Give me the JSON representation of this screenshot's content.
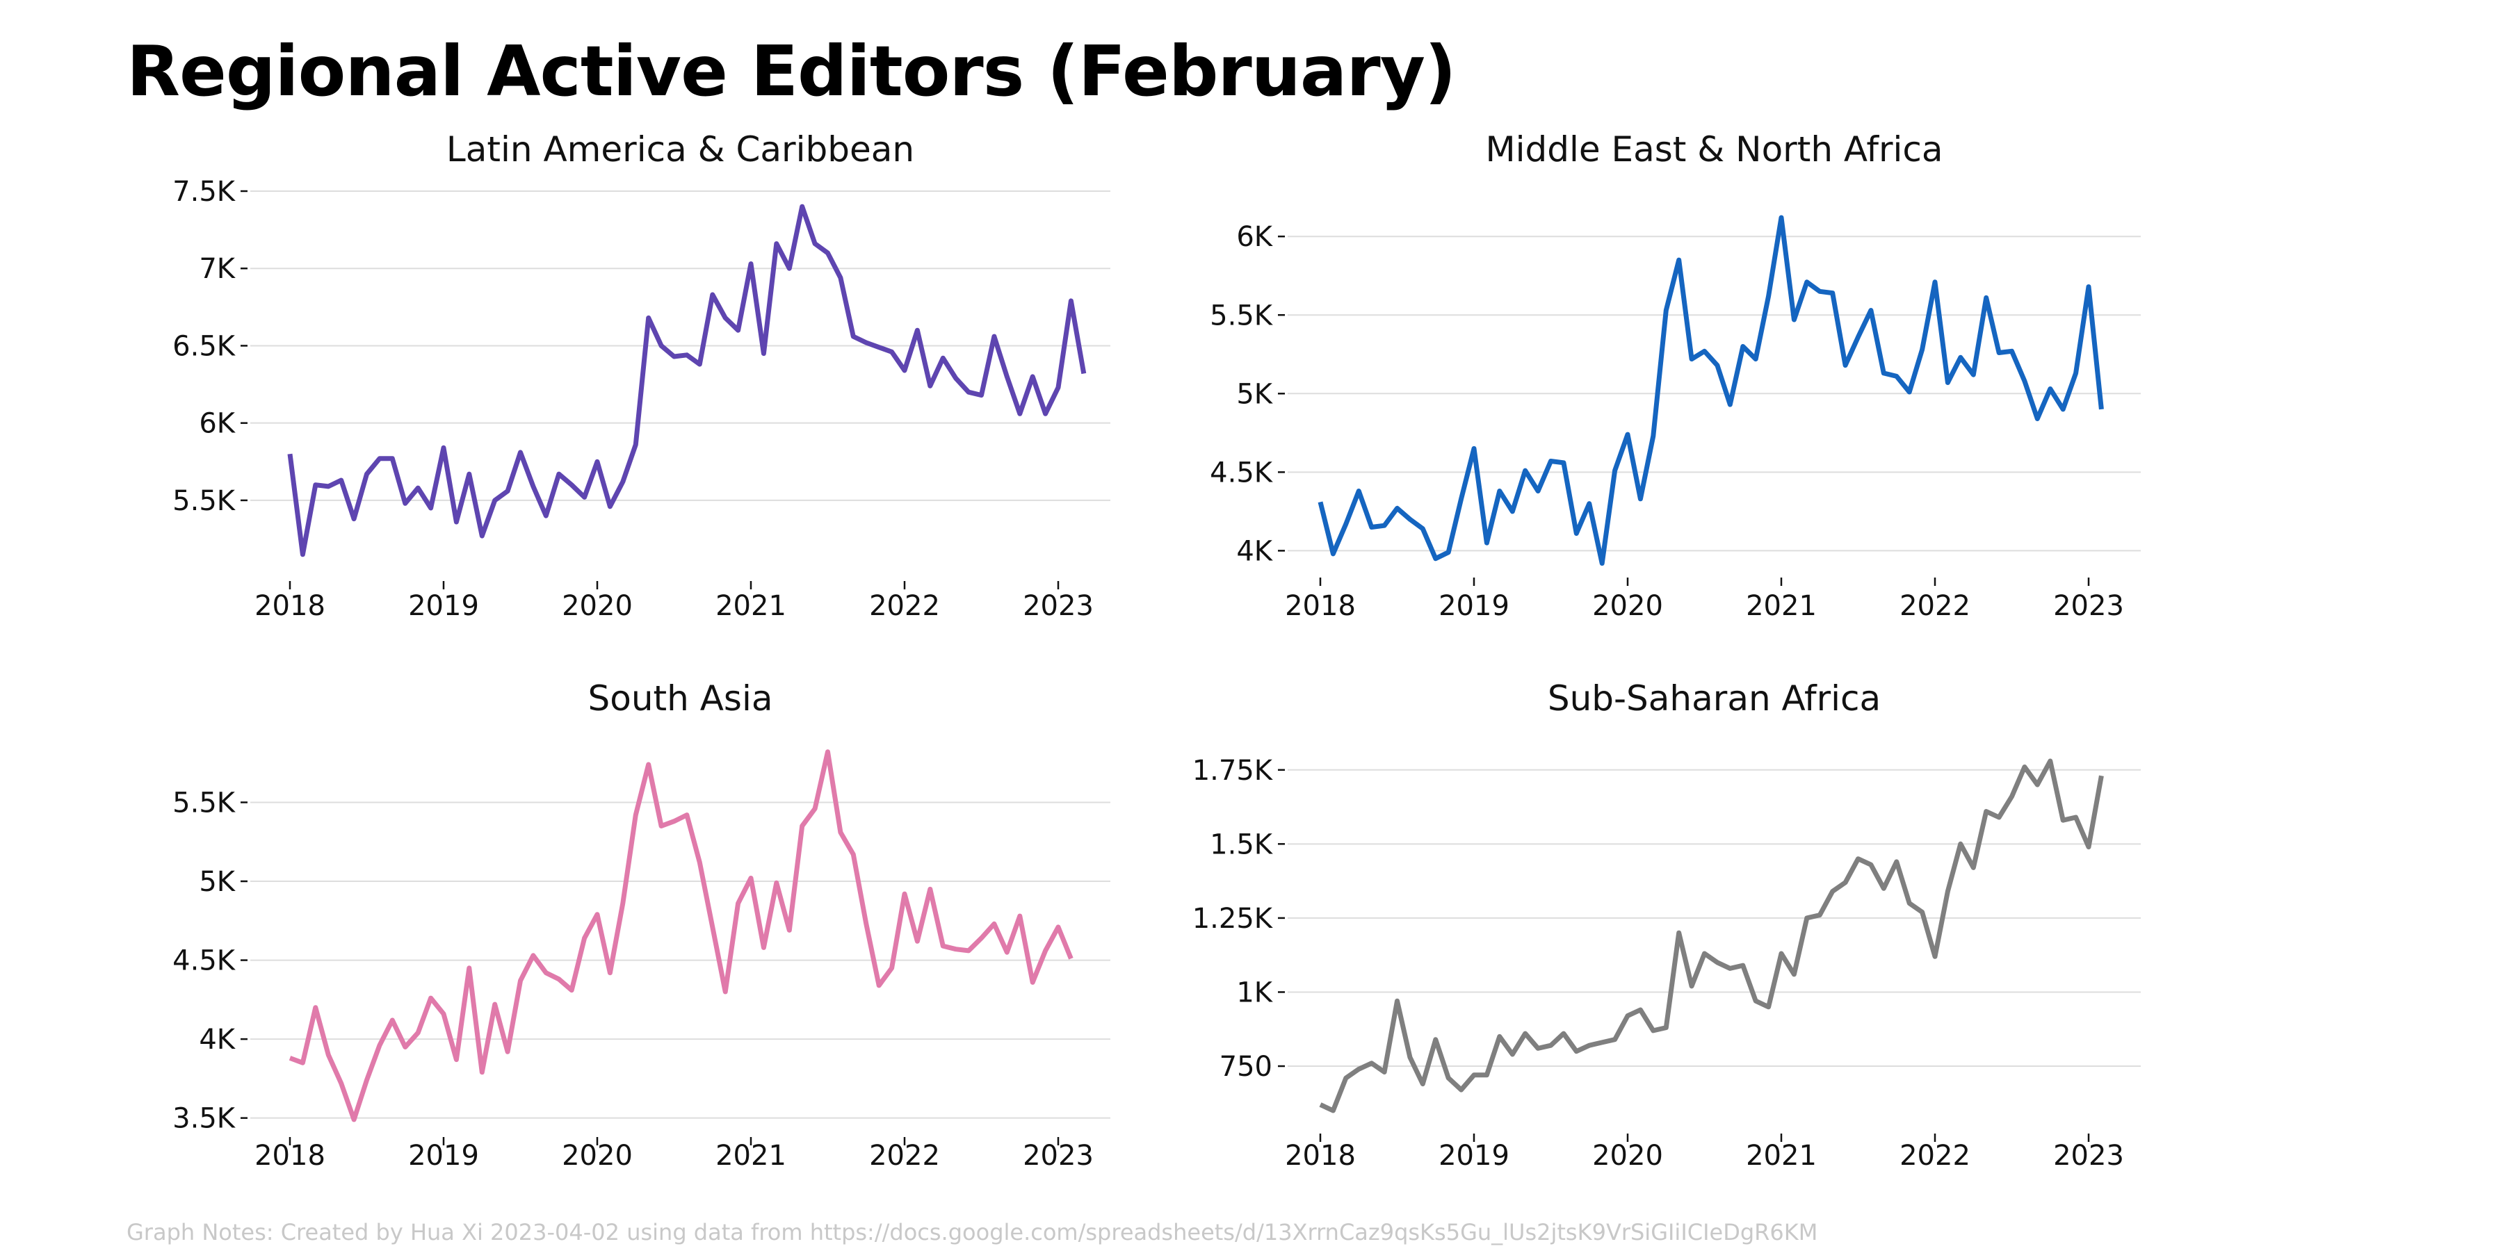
{
  "title": "Regional Active Editors (February)",
  "footnote": "Graph Notes: Created by Hua Xi 2023-04-02 using data from https://docs.google.com/spreadsheets/d/13XrrnCaz9qsKs5Gu_lUs2jtsK9VrSiGIiICIeDgR6KM",
  "chart_data": [
    {
      "type": "line",
      "title": "Latin America & Caribbean",
      "color": "#5e45b0",
      "x_start": "2018-01",
      "x_ticks": [
        "2018",
        "2019",
        "2020",
        "2021",
        "2022",
        "2023"
      ],
      "y_ticks": [
        5500,
        6000,
        6500,
        7000,
        7500
      ],
      "y_tick_labels": [
        "5.5K",
        "6K",
        "6.5K",
        "7K",
        "7.5K"
      ],
      "ylim": [
        5050,
        7500
      ],
      "values": [
        5800,
        5150,
        5600,
        5590,
        5630,
        5380,
        5670,
        5770,
        5770,
        5480,
        5580,
        5450,
        5840,
        5360,
        5670,
        5270,
        5500,
        5560,
        5810,
        5590,
        5400,
        5670,
        5600,
        5520,
        5750,
        5460,
        5620,
        5860,
        6680,
        6500,
        6430,
        6440,
        6380,
        6830,
        6680,
        6600,
        7030,
        6450,
        7160,
        7000,
        7400,
        7160,
        7100,
        6940,
        6560,
        6520,
        6490,
        6460,
        6340,
        6600,
        6240,
        6420,
        6290,
        6200,
        6180,
        6560,
        6300,
        6060,
        6300,
        6060,
        6230,
        6790,
        6320
      ]
    },
    {
      "type": "line",
      "title": "Middle East & North Africa",
      "color": "#1565c0",
      "x_start": "2018-01",
      "x_ticks": [
        "2018",
        "2019",
        "2020",
        "2021",
        "2022",
        "2023"
      ],
      "y_ticks": [
        4000,
        4500,
        5000,
        5500,
        6000
      ],
      "y_tick_labels": [
        "4K",
        "4.5K",
        "5K",
        "5.5K",
        "6K"
      ],
      "ylim": [
        3900,
        6200
      ],
      "values": [
        4310,
        3980,
        4170,
        4380,
        4150,
        4160,
        4270,
        4200,
        4140,
        3950,
        3990,
        4330,
        4650,
        4050,
        4380,
        4250,
        4510,
        4380,
        4570,
        4560,
        4110,
        4300,
        3920,
        4510,
        4740,
        4330,
        4730,
        5530,
        5850,
        5220,
        5270,
        5180,
        4930,
        5300,
        5220,
        5620,
        6120,
        5470,
        5710,
        5650,
        5640,
        5180,
        5360,
        5530,
        5130,
        5110,
        5010,
        5280,
        5710,
        5070,
        5230,
        5120,
        5610,
        5260,
        5270,
        5080,
        4840,
        5030,
        4900,
        5130,
        5680,
        4900
      ]
    },
    {
      "type": "line",
      "title": "South Asia",
      "color": "#e07aaa",
      "x_start": "2018-01",
      "x_ticks": [
        "2018",
        "2019",
        "2020",
        "2021",
        "2022",
        "2023"
      ],
      "y_ticks": [
        3500,
        4000,
        4500,
        5000,
        5500
      ],
      "y_tick_labels": [
        "3.5K",
        "4K",
        "4.5K",
        "5K",
        "5.5K"
      ],
      "ylim": [
        3450,
        5850
      ],
      "values": [
        3880,
        3850,
        4200,
        3900,
        3720,
        3490,
        3740,
        3960,
        4120,
        3950,
        4040,
        4260,
        4160,
        3870,
        4450,
        3790,
        4220,
        3920,
        4370,
        4530,
        4420,
        4380,
        4310,
        4640,
        4790,
        4420,
        4860,
        5420,
        5740,
        5350,
        5380,
        5420,
        5120,
        4710,
        4300,
        4860,
        5020,
        4580,
        4990,
        4690,
        5350,
        5460,
        5820,
        5310,
        5170,
        4730,
        4340,
        4450,
        4920,
        4620,
        4950,
        4590,
        4570,
        4560,
        4640,
        4730,
        4550,
        4780,
        4360,
        4560,
        4710,
        4510
      ]
    },
    {
      "type": "line",
      "title": "Sub-Saharan Africa",
      "color": "#7f7f7f",
      "x_start": "2018-01",
      "x_ticks": [
        "2018",
        "2019",
        "2020",
        "2021",
        "2022",
        "2023"
      ],
      "y_ticks": [
        750,
        1000,
        1250,
        1500,
        1750
      ],
      "y_tick_labels": [
        "750",
        "1K",
        "1.25K",
        "1.5K",
        "1.75K"
      ],
      "ylim": [
        560,
        1780
      ],
      "values": [
        620,
        600,
        710,
        740,
        760,
        730,
        970,
        780,
        690,
        840,
        710,
        670,
        720,
        720,
        850,
        790,
        860,
        810,
        820,
        860,
        800,
        820,
        830,
        840,
        920,
        940,
        870,
        880,
        1200,
        1020,
        1130,
        1100,
        1080,
        1090,
        970,
        950,
        1130,
        1060,
        1250,
        1260,
        1340,
        1370,
        1450,
        1430,
        1350,
        1440,
        1300,
        1270,
        1120,
        1340,
        1500,
        1420,
        1610,
        1590,
        1660,
        1760,
        1700,
        1780,
        1580,
        1590,
        1490,
        1730
      ]
    }
  ]
}
